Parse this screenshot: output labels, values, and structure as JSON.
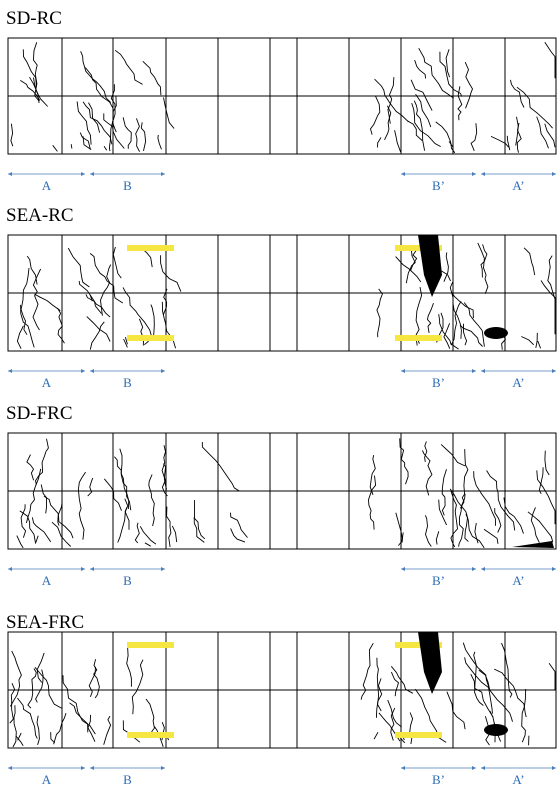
{
  "panels": [
    {
      "title": "SD-RC",
      "labels": [
        "A",
        "B",
        "B’",
        "A’"
      ],
      "patches": false
    },
    {
      "title": "SEA-RC",
      "labels": [
        "A",
        "B",
        "B’",
        "A’"
      ],
      "patches": true
    },
    {
      "title": "SD-FRC",
      "labels": [
        "A",
        "B",
        "B’",
        "A’"
      ],
      "patches": false
    },
    {
      "title": "SEA-FRC",
      "labels": [
        "A",
        "B",
        "B’",
        "A’"
      ],
      "patches": true
    }
  ]
}
